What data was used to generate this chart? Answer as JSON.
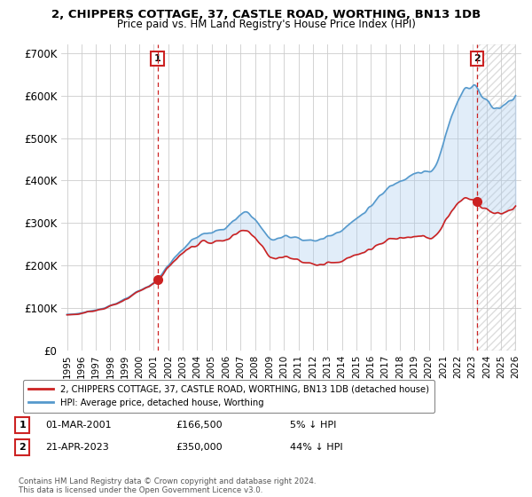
{
  "title_line1": "2, CHIPPERS COTTAGE, 37, CASTLE ROAD, WORTHING, BN13 1DB",
  "title_line2": "Price paid vs. HM Land Registry's House Price Index (HPI)",
  "legend_label_red": "2, CHIPPERS COTTAGE, 37, CASTLE ROAD, WORTHING, BN13 1DB (detached house)",
  "legend_label_blue": "HPI: Average price, detached house, Worthing",
  "purchase1_label": "1",
  "purchase1_date": "01-MAR-2001",
  "purchase1_price": "£166,500",
  "purchase1_hpi": "5% ↓ HPI",
  "purchase2_label": "2",
  "purchase2_date": "21-APR-2023",
  "purchase2_price": "£350,000",
  "purchase2_hpi": "44% ↓ HPI",
  "footnote": "Contains HM Land Registry data © Crown copyright and database right 2024.\nThis data is licensed under the Open Government Licence v3.0.",
  "ylim": [
    0,
    720000
  ],
  "yticks": [
    0,
    100000,
    200000,
    300000,
    400000,
    500000,
    600000,
    700000
  ],
  "ytick_labels": [
    "£0",
    "£100K",
    "£200K",
    "£300K",
    "£400K",
    "£500K",
    "£600K",
    "£700K"
  ],
  "hpi_color": "#5599cc",
  "price_color": "#cc2222",
  "purchase1_x": 2001.25,
  "purchase2_x": 2023.33,
  "purchase1_y": 166500,
  "purchase2_y": 350000,
  "vline1_x": 2001.25,
  "vline2_x": 2023.33,
  "background_color": "#ffffff",
  "grid_color": "#cccccc",
  "hpi_fill_color": "#aaccee",
  "xlim_left": 1994.6,
  "xlim_right": 2026.4
}
